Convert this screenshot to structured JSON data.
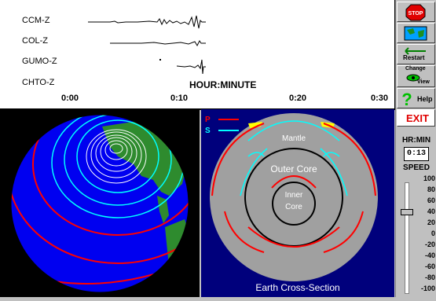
{
  "seismogram": {
    "stations": [
      "CCM-Z",
      "COL-Z",
      "GUMO-Z",
      "CHTO-Z"
    ],
    "axis_title": "HOUR:MINUTE",
    "ticks": [
      "0:00",
      "0:10",
      "0:20",
      "0:30"
    ]
  },
  "cross_section": {
    "title": "Earth Cross-Section",
    "legend_p": "P",
    "legend_s": "S",
    "label_mantle": "Mantle",
    "label_outer_core": "Outer Core",
    "label_inner": "Inner",
    "label_core": "Core"
  },
  "toolbar": {
    "stop_label": "STOP",
    "restart_label": "Restart",
    "change_label": "Change",
    "view_label": "View",
    "help_label": "Help",
    "exit_label": "EXIT",
    "hrmin_label": "HR:MIN",
    "hrmin_value": "0:13",
    "speed_label": "SPEED",
    "speed_values": [
      "100",
      "80",
      "60",
      "40",
      "20",
      "0",
      "-20",
      "-40",
      "-60",
      "-80",
      "-100"
    ]
  },
  "colors": {
    "p_wave": "#ff0000",
    "s_wave": "#00ffff",
    "ocean": "#0000ff",
    "land": "#2e8b2e"
  }
}
